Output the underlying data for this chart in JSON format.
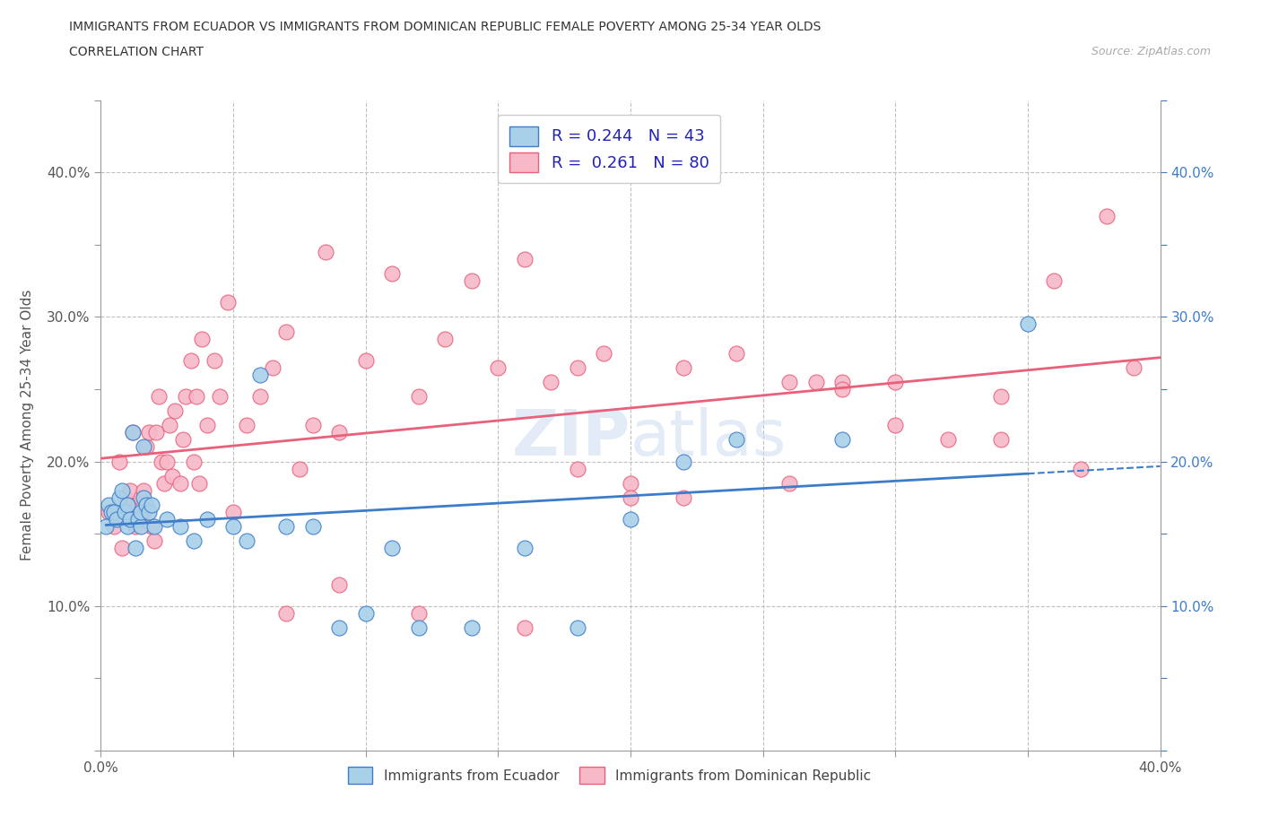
{
  "title_line1": "IMMIGRANTS FROM ECUADOR VS IMMIGRANTS FROM DOMINICAN REPUBLIC FEMALE POVERTY AMONG 25-34 YEAR OLDS",
  "title_line2": "CORRELATION CHART",
  "source_text": "Source: ZipAtlas.com",
  "ylabel": "Female Poverty Among 25-34 Year Olds",
  "xlim": [
    0.0,
    0.4
  ],
  "ylim": [
    0.0,
    0.45
  ],
  "ecuador_color": "#a8d0e8",
  "dominican_color": "#f7b8c8",
  "ecuador_line_color": "#3d7cc9",
  "dominican_line_color": "#e8607a",
  "ecuador_R": 0.244,
  "ecuador_N": 43,
  "dominican_R": 0.261,
  "dominican_N": 80,
  "watermark": "ZIPatlas",
  "legend_R_color": "#2222bb",
  "ecuador_scatter_x": [
    0.002,
    0.003,
    0.004,
    0.005,
    0.006,
    0.007,
    0.008,
    0.009,
    0.01,
    0.01,
    0.011,
    0.012,
    0.013,
    0.014,
    0.015,
    0.015,
    0.016,
    0.016,
    0.017,
    0.018,
    0.019,
    0.02,
    0.025,
    0.03,
    0.035,
    0.04,
    0.05,
    0.055,
    0.06,
    0.07,
    0.08,
    0.09,
    0.1,
    0.11,
    0.12,
    0.14,
    0.16,
    0.18,
    0.2,
    0.22,
    0.24,
    0.28,
    0.35
  ],
  "ecuador_scatter_y": [
    0.155,
    0.17,
    0.165,
    0.165,
    0.16,
    0.175,
    0.18,
    0.165,
    0.17,
    0.155,
    0.16,
    0.22,
    0.14,
    0.16,
    0.155,
    0.165,
    0.175,
    0.21,
    0.17,
    0.165,
    0.17,
    0.155,
    0.16,
    0.155,
    0.145,
    0.16,
    0.155,
    0.145,
    0.26,
    0.155,
    0.155,
    0.085,
    0.095,
    0.14,
    0.085,
    0.085,
    0.14,
    0.085,
    0.16,
    0.2,
    0.215,
    0.215,
    0.295
  ],
  "dominican_scatter_x": [
    0.003,
    0.005,
    0.007,
    0.008,
    0.009,
    0.01,
    0.011,
    0.012,
    0.013,
    0.014,
    0.015,
    0.016,
    0.016,
    0.017,
    0.018,
    0.019,
    0.02,
    0.021,
    0.022,
    0.023,
    0.024,
    0.025,
    0.026,
    0.027,
    0.028,
    0.03,
    0.031,
    0.032,
    0.034,
    0.035,
    0.036,
    0.037,
    0.038,
    0.04,
    0.043,
    0.045,
    0.048,
    0.05,
    0.055,
    0.06,
    0.065,
    0.07,
    0.075,
    0.08,
    0.085,
    0.09,
    0.1,
    0.11,
    0.12,
    0.13,
    0.14,
    0.15,
    0.16,
    0.17,
    0.18,
    0.19,
    0.2,
    0.22,
    0.24,
    0.26,
    0.27,
    0.28,
    0.3,
    0.32,
    0.34,
    0.36,
    0.37,
    0.38,
    0.39,
    0.12,
    0.16,
    0.2,
    0.26,
    0.28,
    0.3,
    0.34,
    0.18,
    0.22,
    0.07,
    0.09
  ],
  "dominican_scatter_y": [
    0.165,
    0.155,
    0.2,
    0.14,
    0.175,
    0.165,
    0.18,
    0.22,
    0.155,
    0.17,
    0.175,
    0.18,
    0.165,
    0.21,
    0.22,
    0.155,
    0.145,
    0.22,
    0.245,
    0.2,
    0.185,
    0.2,
    0.225,
    0.19,
    0.235,
    0.185,
    0.215,
    0.245,
    0.27,
    0.2,
    0.245,
    0.185,
    0.285,
    0.225,
    0.27,
    0.245,
    0.31,
    0.165,
    0.225,
    0.245,
    0.265,
    0.29,
    0.195,
    0.225,
    0.345,
    0.22,
    0.27,
    0.33,
    0.245,
    0.285,
    0.325,
    0.265,
    0.34,
    0.255,
    0.265,
    0.275,
    0.185,
    0.265,
    0.275,
    0.255,
    0.255,
    0.255,
    0.255,
    0.215,
    0.215,
    0.325,
    0.195,
    0.37,
    0.265,
    0.095,
    0.085,
    0.175,
    0.185,
    0.25,
    0.225,
    0.245,
    0.195,
    0.175,
    0.095,
    0.115
  ]
}
